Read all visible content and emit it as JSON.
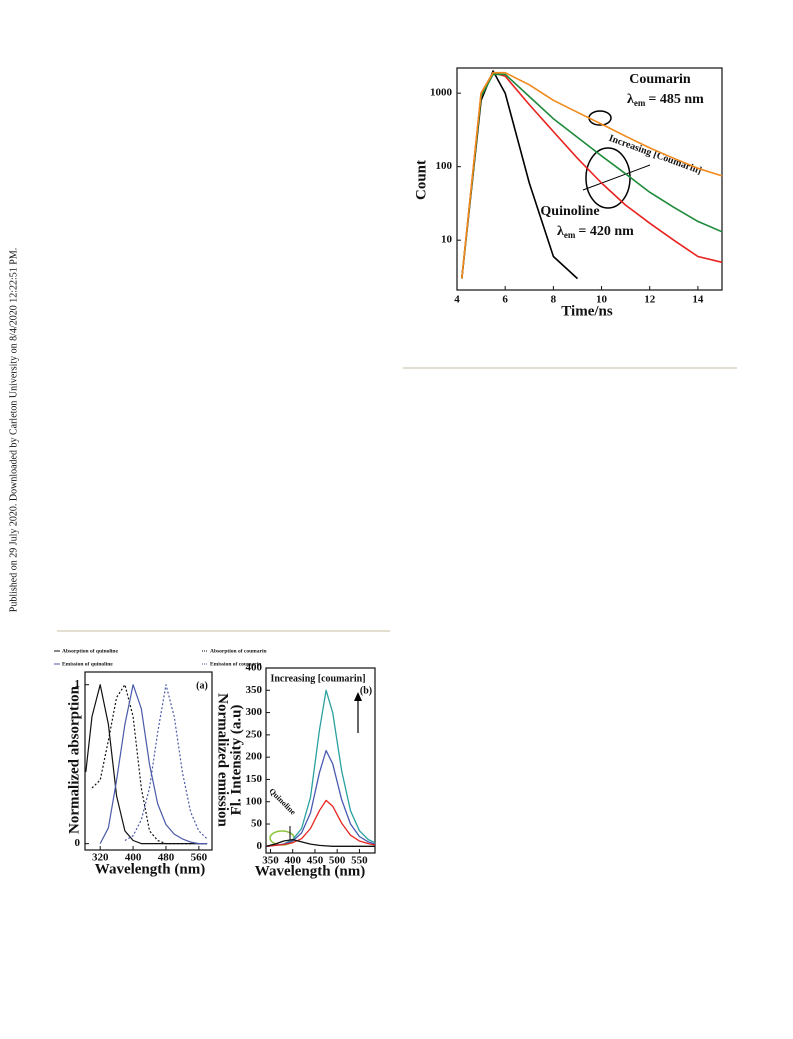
{
  "side_note": "Published on 29 July 2020. Downloaded by Carleton University on 8/4/2020 12:22:51 PM.",
  "chart_data": [
    {
      "type": "line",
      "xlabel": "Time/ns",
      "ylabel": "Count",
      "yscale": "log",
      "x": [
        4.2,
        5,
        5.5,
        6,
        7,
        8,
        9,
        10,
        11,
        12,
        13,
        14,
        15
      ],
      "xlim": [
        4,
        15
      ],
      "ylim": [
        2.1,
        2200
      ],
      "xticks": [
        4,
        6,
        8,
        10,
        12,
        14
      ],
      "yticks": [
        10,
        100,
        1000
      ],
      "series": [
        {
          "color": "#000000",
          "values": [
            3,
            800,
            2000,
            1000,
            60,
            6,
            3,
            null,
            null,
            null,
            null,
            null,
            null
          ]
        },
        {
          "color": "#e8231f",
          "values": [
            3,
            1000,
            1900,
            1700,
            700,
            300,
            130,
            60,
            30,
            17,
            10,
            6,
            5
          ]
        },
        {
          "color": "#1e8a3a",
          "values": [
            3,
            900,
            1800,
            1800,
            900,
            450,
            250,
            140,
            80,
            45,
            28,
            18,
            13
          ]
        },
        {
          "color": "#f08a1c",
          "values": [
            3,
            1000,
            1900,
            1900,
            1300,
            800,
            550,
            380,
            260,
            180,
            130,
            95,
            75
          ]
        }
      ],
      "annotations": [
        "Coumarin",
        {
          "symbol": "λ",
          "subscript": "em",
          "text": "= 485 nm"
        },
        "Increasing [Coumarin]",
        "Quinoline",
        {
          "symbol": "λ",
          "subscript": "em",
          "text": "= 420 nm"
        }
      ]
    },
    {
      "type": "line",
      "xlabel": "Wavelength (nm)",
      "ylabel": "Normalized absorption",
      "y2label": "Normalized emission",
      "x": [
        285,
        300,
        320,
        340,
        360,
        380,
        400,
        420,
        440,
        460,
        480,
        500,
        520,
        540,
        560,
        580
      ],
      "xlim": [
        283,
        592
      ],
      "ylim": [
        -0.04,
        1.08
      ],
      "xticks": [
        320,
        400,
        480,
        560
      ],
      "yticks": [
        0,
        1
      ],
      "series": [
        {
          "name": "Absorption of quinoline",
          "color": "#111111",
          "values": [
            0.45,
            0.8,
            1,
            0.75,
            0.3,
            0.08,
            0.02,
            0,
            0,
            0,
            0,
            0,
            0,
            0,
            0,
            0
          ]
        },
        {
          "name": "Absorption of coumarin",
          "color": "#111111",
          "dash": true,
          "values": [
            null,
            0.35,
            0.4,
            0.65,
            0.92,
            1,
            0.8,
            0.35,
            0.08,
            0.02,
            0,
            0,
            0,
            0,
            0,
            0
          ]
        },
        {
          "name": "Emission of quinoline",
          "color": "#4a5aa8",
          "values": [
            null,
            null,
            0,
            0.1,
            0.4,
            0.75,
            1,
            0.85,
            0.5,
            0.25,
            0.12,
            0.06,
            0.03,
            0.01,
            0,
            0
          ]
        },
        {
          "name": "Emission of coumarin",
          "color": "#4a5aa8",
          "dash": true,
          "values": [
            null,
            null,
            null,
            null,
            null,
            0.02,
            0.05,
            0.15,
            0.35,
            0.7,
            1,
            0.8,
            0.45,
            0.2,
            0.08,
            0.03
          ]
        }
      ],
      "annotations": [
        "(a)"
      ]
    },
    {
      "type": "line",
      "xlabel": "Wavelength (nm)",
      "ylabel": "Fl. Intensity (a.u)",
      "x": [
        340,
        360,
        380,
        400,
        420,
        440,
        460,
        475,
        490,
        510,
        530,
        550,
        570,
        585
      ],
      "xlim": [
        340,
        585
      ],
      "ylim": [
        -15,
        400
      ],
      "xticks": [
        350,
        400,
        450,
        500,
        550
      ],
      "yticks": [
        0,
        50,
        100,
        150,
        200,
        250,
        300,
        350,
        400
      ],
      "series": [
        {
          "color": "#2aa0a0",
          "values": [
            0,
            2,
            5,
            15,
            40,
            110,
            260,
            350,
            300,
            170,
            80,
            35,
            15,
            8
          ]
        },
        {
          "color": "#4a5ab0",
          "values": [
            0,
            2,
            5,
            12,
            30,
            75,
            165,
            215,
            185,
            105,
            50,
            22,
            10,
            5
          ]
        },
        {
          "color": "#e8231f",
          "values": [
            0,
            2,
            4,
            8,
            17,
            40,
            80,
            103,
            90,
            52,
            25,
            12,
            6,
            3
          ]
        },
        {
          "color": "#111111",
          "values": [
            0,
            5,
            12,
            15,
            10,
            5,
            2,
            1,
            0,
            0,
            0,
            0,
            0,
            0
          ]
        }
      ],
      "annotations": [
        "Increasing [coumarin]",
        "(b)",
        "Quinoline"
      ]
    }
  ]
}
